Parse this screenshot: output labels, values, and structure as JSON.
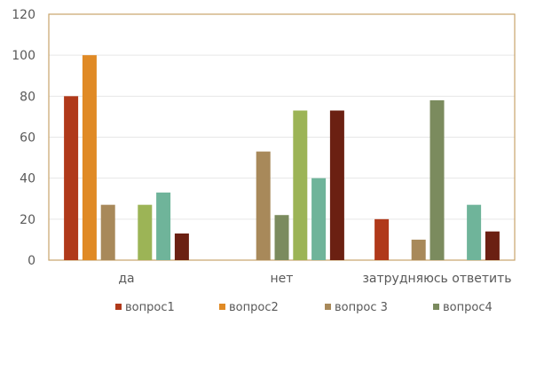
{
  "chart_data": {
    "type": "bar",
    "categories": [
      "да",
      "нет",
      "затрудняюсь ответить"
    ],
    "series": [
      {
        "name": "вопрос1",
        "color": "#b0391a",
        "values": [
          80,
          0,
          20
        ]
      },
      {
        "name": "вопрос2",
        "color": "#e08a25",
        "values": [
          100,
          0,
          0
        ]
      },
      {
        "name": "вопрос 3",
        "color": "#a8895a",
        "values": [
          27,
          53,
          10
        ]
      },
      {
        "name": "вопрос4",
        "color": "#7b8b5e",
        "values": [
          0,
          22,
          78
        ]
      },
      {
        "name": "",
        "color": "#9cb456",
        "values": [
          27,
          73,
          0
        ]
      },
      {
        "name": "",
        "color": "#6fb49a",
        "values": [
          33,
          40,
          27
        ]
      },
      {
        "name": "",
        "color": "#6b2012",
        "values": [
          13,
          73,
          14
        ]
      }
    ],
    "yticks": [
      "0",
      "20",
      "40",
      "60",
      "80",
      "100",
      "120"
    ],
    "ylim": [
      0,
      120
    ],
    "grid": true,
    "frame_color": "#c8a46a",
    "legend": "bottom",
    "legend_items": 4
  }
}
